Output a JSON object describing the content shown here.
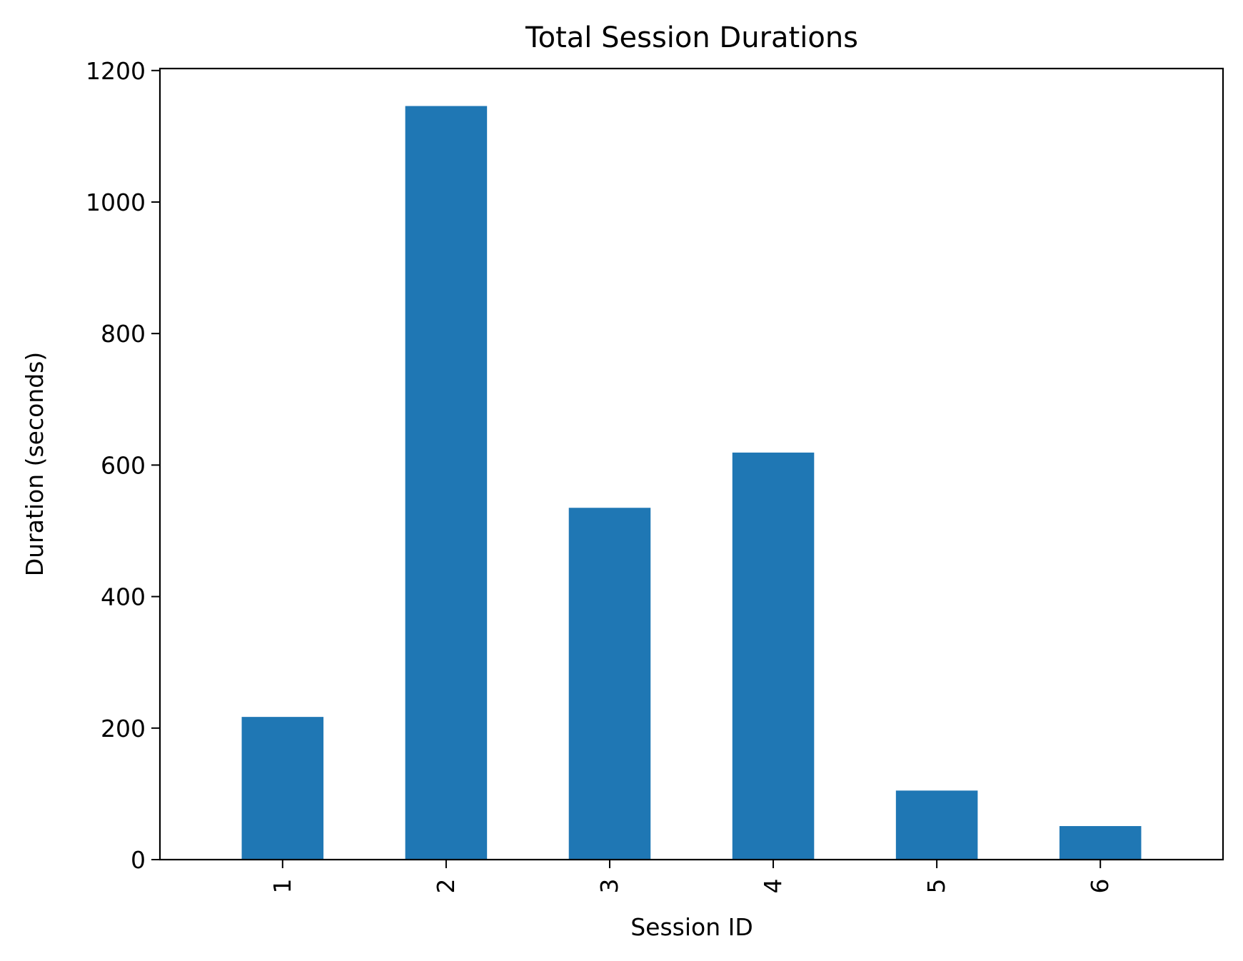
{
  "chart_data": {
    "type": "bar",
    "title": "Total Session Durations",
    "xlabel": "Session ID",
    "ylabel": "Duration (seconds)",
    "categories": [
      "1",
      "2",
      "3",
      "4",
      "5",
      "6"
    ],
    "values": [
      217,
      1146,
      535,
      619,
      105,
      51
    ],
    "ylim": [
      0,
      1203
    ],
    "yticks": [
      0,
      200,
      400,
      600,
      800,
      1000,
      1200
    ],
    "grid": false,
    "bar_color": "#1f77b4"
  }
}
